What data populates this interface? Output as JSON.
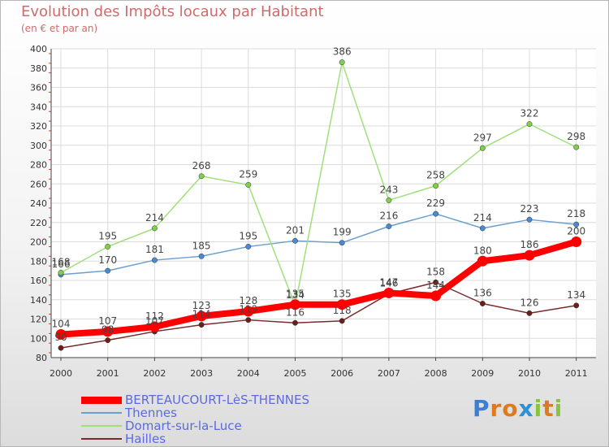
{
  "title": "Evolution des Impôts locaux par Habitant",
  "subtitle": "(en € et par an)",
  "brand": {
    "text": "Proxiti",
    "letter_colors": [
      "#3b7fd4",
      "#e07a1f",
      "#e07a1f",
      "#2f8fd6",
      "#8ac43f",
      "#e07a1f",
      "#8ac43f"
    ]
  },
  "chart_data": {
    "type": "line",
    "x": [
      "2000",
      "2001",
      "2002",
      "2003",
      "2004",
      "2005",
      "2006",
      "2007",
      "2008",
      "2009",
      "2010",
      "2011"
    ],
    "ylim": [
      80,
      400
    ],
    "yticks": [
      80,
      100,
      120,
      140,
      160,
      180,
      200,
      220,
      240,
      260,
      280,
      300,
      320,
      340,
      360,
      380,
      400
    ],
    "grid": true,
    "legend_position": "bottom-left",
    "series": [
      {
        "name": "BERTEAUCOURT-LèS-THENNES",
        "color": "#ff0000",
        "marker_color": "#ff0000",
        "width": 8,
        "values": [
          104,
          107,
          112,
          123,
          128,
          135,
          135,
          147,
          144,
          180,
          186,
          200
        ]
      },
      {
        "name": "Thennes",
        "color": "#6a9fd0",
        "marker_color": "#4a8ad0",
        "width": 1.5,
        "values": [
          166,
          170,
          181,
          185,
          195,
          201,
          199,
          216,
          229,
          214,
          223,
          218
        ]
      },
      {
        "name": "Domart-sur-la-Luce",
        "color": "#9fe07a",
        "marker_color": "#7ed04a",
        "width": 1.5,
        "values": [
          168,
          195,
          214,
          268,
          259,
          134,
          386,
          243,
          258,
          297,
          322,
          298
        ]
      },
      {
        "name": "Hailles",
        "color": "#7a2a2a",
        "marker_color": "#6a1e1e",
        "width": 1.5,
        "values": [
          90,
          98,
          107,
          114,
          119,
          116,
          118,
          146,
          158,
          136,
          126,
          134
        ]
      }
    ]
  }
}
